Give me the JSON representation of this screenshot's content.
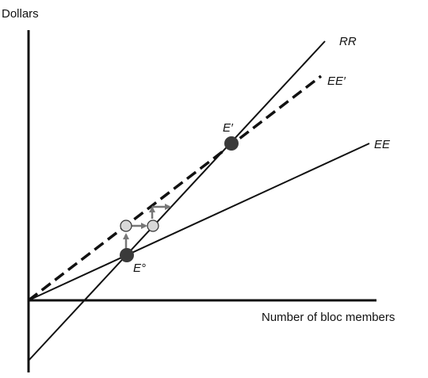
{
  "axis": {
    "y_label": "Dollars",
    "x_label": "Number of bloc members"
  },
  "curves": {
    "rr": "RR",
    "ee_prime": "EE′",
    "ee": "EE"
  },
  "points": {
    "e_prime": "E′",
    "e_zero": "E°"
  },
  "colors": {
    "line": "#111111",
    "dot_dark": "#3a3a3a",
    "dot_light": "#d8d8d8",
    "arrow": "#777777"
  }
}
